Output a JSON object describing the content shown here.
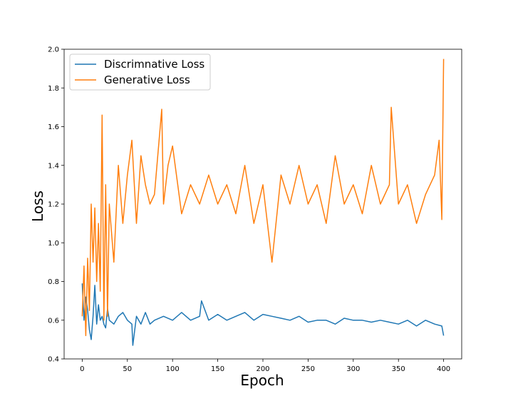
{
  "chart_data": {
    "type": "line",
    "title": "",
    "xlabel": "Epoch",
    "ylabel": "Loss",
    "xlim": [
      -20,
      420
    ],
    "ylim": [
      0.4,
      2.0
    ],
    "x_ticks": [
      0,
      50,
      100,
      150,
      200,
      250,
      300,
      350,
      400
    ],
    "y_ticks": [
      0.4,
      0.6,
      0.8,
      1.0,
      1.2,
      1.4,
      1.6,
      1.8,
      2.0
    ],
    "grid": false,
    "legend_position": "top-left",
    "series": [
      {
        "name": "Discrimnative Loss",
        "color": "#1f77b4",
        "x": [
          0,
          2,
          4,
          6,
          8,
          10,
          12,
          14,
          16,
          18,
          20,
          22,
          24,
          26,
          28,
          30,
          35,
          40,
          45,
          50,
          55,
          56,
          60,
          65,
          70,
          75,
          80,
          90,
          100,
          110,
          120,
          130,
          132,
          140,
          150,
          160,
          170,
          180,
          190,
          200,
          210,
          220,
          230,
          240,
          250,
          260,
          270,
          280,
          290,
          300,
          310,
          320,
          330,
          340,
          350,
          360,
          370,
          380,
          390,
          398,
          400
        ],
        "values": [
          0.79,
          0.6,
          0.72,
          0.65,
          0.55,
          0.5,
          0.62,
          0.78,
          0.58,
          0.68,
          0.6,
          0.62,
          0.58,
          0.56,
          0.66,
          0.6,
          0.58,
          0.62,
          0.64,
          0.6,
          0.58,
          0.47,
          0.62,
          0.58,
          0.64,
          0.58,
          0.6,
          0.62,
          0.6,
          0.64,
          0.6,
          0.62,
          0.7,
          0.6,
          0.63,
          0.6,
          0.62,
          0.64,
          0.6,
          0.63,
          0.62,
          0.61,
          0.6,
          0.62,
          0.59,
          0.6,
          0.6,
          0.58,
          0.61,
          0.6,
          0.6,
          0.59,
          0.6,
          0.59,
          0.58,
          0.6,
          0.57,
          0.6,
          0.58,
          0.57,
          0.52
        ]
      },
      {
        "name": "Generative Loss",
        "color": "#ff7f0e",
        "x": [
          0,
          2,
          4,
          6,
          8,
          10,
          12,
          14,
          16,
          18,
          20,
          22,
          24,
          26,
          28,
          30,
          35,
          40,
          45,
          50,
          55,
          60,
          65,
          70,
          75,
          80,
          88,
          90,
          95,
          100,
          110,
          120,
          130,
          140,
          150,
          160,
          170,
          180,
          190,
          200,
          210,
          220,
          230,
          240,
          250,
          260,
          270,
          280,
          290,
          300,
          310,
          320,
          330,
          340,
          342,
          350,
          360,
          370,
          380,
          390,
          395,
          398,
          400
        ],
        "values": [
          0.62,
          0.88,
          0.52,
          0.92,
          0.65,
          1.2,
          0.9,
          1.18,
          0.8,
          1.1,
          0.75,
          1.66,
          0.6,
          1.3,
          0.62,
          1.2,
          0.9,
          1.4,
          1.1,
          1.35,
          1.53,
          1.1,
          1.45,
          1.3,
          1.2,
          1.25,
          1.69,
          1.2,
          1.4,
          1.5,
          1.15,
          1.3,
          1.2,
          1.35,
          1.2,
          1.3,
          1.15,
          1.4,
          1.1,
          1.3,
          0.9,
          1.35,
          1.2,
          1.4,
          1.2,
          1.3,
          1.1,
          1.45,
          1.2,
          1.3,
          1.15,
          1.4,
          1.2,
          1.3,
          1.7,
          1.2,
          1.3,
          1.1,
          1.25,
          1.35,
          1.53,
          1.12,
          1.95
        ]
      }
    ]
  }
}
